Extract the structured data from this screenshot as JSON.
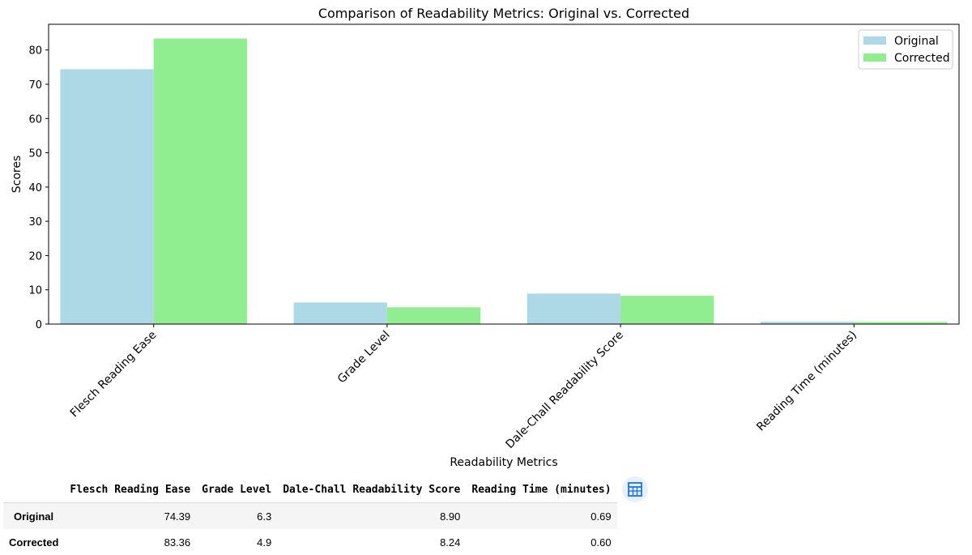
{
  "chart_data": {
    "type": "bar",
    "title": "Comparison of Readability Metrics: Original vs. Corrected",
    "xlabel": "Readability Metrics",
    "ylabel": "Scores",
    "categories": [
      "Flesch Reading Ease",
      "Grade Level",
      "Dale-Chall Readability Score",
      "Reading Time (minutes)"
    ],
    "series": [
      {
        "name": "Original",
        "color": "#add8e6",
        "values": [
          74.39,
          6.3,
          8.9,
          0.69
        ]
      },
      {
        "name": "Corrected",
        "color": "#90ee90",
        "values": [
          83.36,
          4.9,
          8.24,
          0.6
        ]
      }
    ],
    "ylim": [
      0,
      87.5
    ],
    "yticks": [
      0,
      10,
      20,
      30,
      40,
      50,
      60,
      70,
      80
    ],
    "ytick_labels": [
      "0",
      "10",
      "20",
      "30",
      "40",
      "50",
      "60",
      "70",
      "80"
    ],
    "grid": false,
    "legend_position": "top-right",
    "xtick_rotation": 45
  },
  "table": {
    "columns": [
      "Flesch Reading Ease",
      "Grade Level",
      "Dale-Chall Readability Score",
      "Reading Time (minutes)"
    ],
    "rows": [
      {
        "label": "Original",
        "cells": [
          "74.39",
          "6.3",
          "8.90",
          "0.69"
        ]
      },
      {
        "label": "Corrected",
        "cells": [
          "83.36",
          "4.9",
          "8.24",
          "0.60"
        ]
      }
    ]
  },
  "table_icon": {
    "name": "table-icon",
    "color": "#1a73e8"
  }
}
